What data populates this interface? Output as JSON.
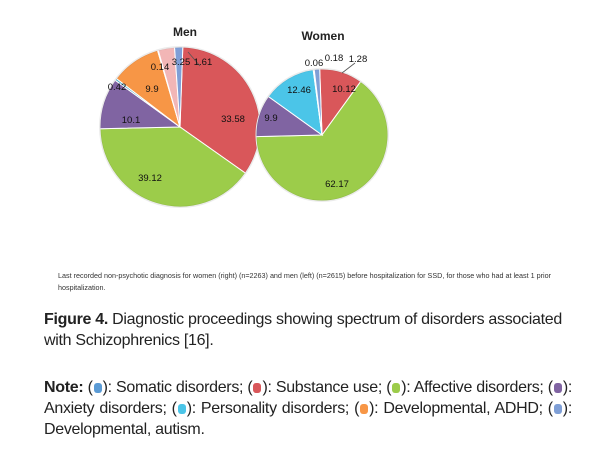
{
  "chart_data": [
    {
      "type": "pie",
      "title": "Men",
      "slices": [
        {
          "label": "33.58",
          "value": 33.58,
          "color": "#d9575a"
        },
        {
          "label": "39.12",
          "value": 39.12,
          "color": "#9ccc4a"
        },
        {
          "label": "10.1",
          "value": 10.1,
          "color": "#8064a2"
        },
        {
          "label": "0.42",
          "value": 0.42,
          "color": "#4bacc6"
        },
        {
          "label": "9.9",
          "value": 9.9,
          "color": "#f79646"
        },
        {
          "label": "0.14",
          "value": 0.14,
          "color": "#ef9a9a"
        },
        {
          "label": "3.25",
          "value": 3.25,
          "color": "#f2b6b6"
        },
        {
          "label": "1.61",
          "value": 1.61,
          "color": "#7f9fd6"
        }
      ]
    },
    {
      "type": "pie",
      "title": "Women",
      "slices": [
        {
          "label": "10.12",
          "value": 10.12,
          "color": "#d9575a"
        },
        {
          "label": "62.17",
          "value": 62.17,
          "color": "#9ccc4a"
        },
        {
          "label": "9.9",
          "value": 9.9,
          "color": "#8064a2"
        },
        {
          "label": "12.46",
          "value": 12.46,
          "color": "#4bc5e8"
        },
        {
          "label": "0.06",
          "value": 0.06,
          "color": "#f79646"
        },
        {
          "label": "0.18",
          "value": 0.18,
          "color": "#f2b6b6"
        },
        {
          "label": "1.28",
          "value": 1.28,
          "color": "#7f9fd6"
        }
      ]
    }
  ],
  "source_note": "Last recorded non-psychotic diagnosis for women (right) (n=2263) and men (left) (n=2615) before hospitalization for SSD, for those who had at least 1 prior hospitalization.",
  "caption": {
    "label": "Figure 4.",
    "text": " Diagnostic proceedings showing spectrum of disorders associated with Schizophrenics [16]."
  },
  "note": {
    "label": "Note:",
    "items": [
      {
        "color": "#5b9bd5",
        "text": "Somatic disorders;"
      },
      {
        "color": "#d9575a",
        "text": "Substance use;"
      },
      {
        "color": "#9ccc4a",
        "text": "Affective disorders;"
      },
      {
        "color": "#8064a2",
        "text": "Anxiety disorders;"
      },
      {
        "color": "#4bc5e8",
        "text": "Personality disorders;"
      },
      {
        "color": "#f79646",
        "text": "Developmental, ADHD;"
      },
      {
        "color": "#7f9fd6",
        "text": "Developmental, autism."
      }
    ]
  }
}
